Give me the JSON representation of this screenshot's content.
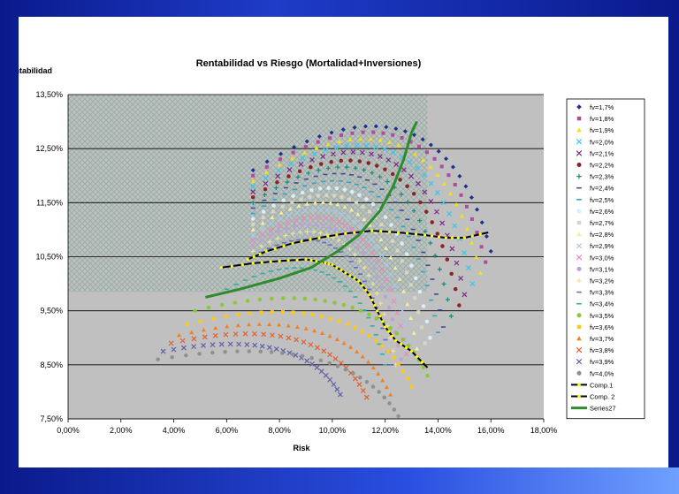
{
  "colors": {
    "plot_bg": "#c0c0c0",
    "hatch": "#a9bdb5",
    "comp_line": "#000000",
    "comp_marker": "#ffff00",
    "frontier": "#2e8b2e"
  },
  "chart_data": {
    "type": "scatter",
    "title": "Rentabilidad vs Riesgo (Mortalidad+Inversiones)",
    "xlabel": "Risk",
    "ylabel": "Rentabilidad",
    "xlim": [
      0,
      18
    ],
    "ylim": [
      7.5,
      13.5
    ],
    "x_ticks": [
      "0,00%",
      "2,00%",
      "4,00%",
      "6,00%",
      "8,00%",
      "10,00%",
      "12,00%",
      "14,00%",
      "16,00%",
      "18,00%"
    ],
    "y_ticks": [
      "7,50%",
      "8,50%",
      "9,50%",
      "10,50%",
      "11,50%",
      "12,50%",
      "13,50%"
    ],
    "grid": true,
    "legend_position": "right",
    "series": [
      {
        "name": "fv=1,7%",
        "color": "#1f2f8f",
        "marker": "diamond",
        "start": [
          7.0,
          12.1
        ],
        "end": [
          16.0,
          10.6
        ],
        "peak": 12.98
      },
      {
        "name": "fv=1,8%",
        "color": "#b04c9a",
        "marker": "square",
        "start": [
          7.0,
          12.0
        ],
        "end": [
          15.8,
          10.4
        ],
        "peak": 12.85
      },
      {
        "name": "fv=1,9%",
        "color": "#f2e21a",
        "marker": "triangle",
        "start": [
          7.0,
          11.9
        ],
        "end": [
          15.6,
          10.2
        ],
        "peak": 12.7
      },
      {
        "name": "fv=2,0%",
        "color": "#38c8e8",
        "marker": "x",
        "start": [
          7.0,
          11.8
        ],
        "end": [
          15.3,
          10.0
        ],
        "peak": 12.55
      },
      {
        "name": "fv=2,1%",
        "color": "#7a2b8a",
        "marker": "x",
        "start": [
          7.0,
          11.7
        ],
        "end": [
          15.0,
          9.8
        ],
        "peak": 12.4
      },
      {
        "name": "fv=2,2%",
        "color": "#8a2424",
        "marker": "circle",
        "start": [
          7.0,
          11.6
        ],
        "end": [
          14.8,
          9.6
        ],
        "peak": 12.2
      },
      {
        "name": "fv=2,3%",
        "color": "#1b8a7a",
        "marker": "plus",
        "start": [
          7.0,
          11.5
        ],
        "end": [
          14.5,
          9.4
        ],
        "peak": 12.05
      },
      {
        "name": "fv=2,4%",
        "color": "#3a4aa0",
        "marker": "dash",
        "start": [
          7.0,
          11.4
        ],
        "end": [
          14.2,
          9.2
        ],
        "peak": 11.9
      },
      {
        "name": "fv=2,5%",
        "color": "#2aa8c8",
        "marker": "dash",
        "start": [
          7.0,
          11.3
        ],
        "end": [
          14.0,
          9.1
        ],
        "peak": 11.75
      },
      {
        "name": "fv=2,6%",
        "color": "#d8eef8",
        "marker": "circle",
        "start": [
          7.0,
          11.2
        ],
        "end": [
          13.7,
          9.0
        ],
        "peak": 11.6
      },
      {
        "name": "fv=2,7%",
        "color": "#d8d8c0",
        "marker": "square",
        "start": [
          7.0,
          11.1
        ],
        "end": [
          13.5,
          8.9
        ],
        "peak": 11.45
      },
      {
        "name": "fv=2,8%",
        "color": "#f0f0a0",
        "marker": "triangle",
        "start": [
          7.0,
          11.0
        ],
        "end": [
          13.2,
          8.8
        ],
        "peak": 11.3
      },
      {
        "name": "fv=2,9%",
        "color": "#a8c8e8",
        "marker": "x",
        "start": [
          7.0,
          10.9
        ],
        "end": [
          13.0,
          8.7
        ],
        "peak": 11.15
      },
      {
        "name": "fv=3,0%",
        "color": "#e88ac8",
        "marker": "x",
        "start": [
          7.0,
          10.8
        ],
        "end": [
          12.8,
          8.7
        ],
        "peak": 11.0
      },
      {
        "name": "fv=3,1%",
        "color": "#c0a0d8",
        "marker": "circle",
        "start": [
          7.0,
          10.7
        ],
        "end": [
          12.6,
          8.6
        ],
        "peak": 10.85
      },
      {
        "name": "fv=3,2%",
        "color": "#f0e0a0",
        "marker": "plus",
        "start": [
          7.0,
          10.6
        ],
        "end": [
          12.4,
          8.5
        ],
        "peak": 10.7
      },
      {
        "name": "fv=3,3%",
        "color": "#6a6ac8",
        "marker": "dash",
        "start": [
          7.0,
          10.5
        ],
        "end": [
          12.2,
          8.5
        ],
        "peak": 10.55
      },
      {
        "name": "fv=3,4%",
        "color": "#30b0a0",
        "marker": "dash",
        "start": [
          6.0,
          9.9
        ],
        "end": [
          12.0,
          8.5
        ],
        "peak": 10.2
      },
      {
        "name": "fv=3,5%",
        "color": "#8ac838",
        "marker": "circle",
        "start": [
          4.8,
          9.5
        ],
        "end": [
          13.6,
          8.3
        ],
        "peak": 9.6
      },
      {
        "name": "fv=3,6%",
        "color": "#f8c820",
        "marker": "square",
        "start": [
          4.5,
          9.25
        ],
        "end": [
          13.0,
          8.1
        ],
        "peak": 9.35
      },
      {
        "name": "fv=3,7%",
        "color": "#f08020",
        "marker": "triangle",
        "start": [
          4.2,
          9.05
        ],
        "end": [
          12.2,
          7.95
        ],
        "peak": 9.12
      },
      {
        "name": "fv=3,8%",
        "color": "#e06030",
        "marker": "x",
        "start": [
          3.9,
          8.9
        ],
        "end": [
          11.3,
          7.9
        ],
        "peak": 8.95
      },
      {
        "name": "fv=3,9%",
        "color": "#6060a8",
        "marker": "x",
        "start": [
          3.6,
          8.75
        ],
        "end": [
          10.3,
          7.95
        ],
        "peak": 8.78
      },
      {
        "name": "fv=4,0%",
        "color": "#909090",
        "marker": "circle",
        "start": [
          3.4,
          8.6
        ],
        "end": [
          12.5,
          7.55
        ],
        "peak": 8.6
      }
    ],
    "lines": [
      {
        "name": "Comp.1",
        "color": "#000000",
        "marker_color": "#ffff00",
        "points": [
          [
            6.8,
            10.45
          ],
          [
            7.5,
            10.6
          ],
          [
            8.5,
            10.75
          ],
          [
            9.5,
            10.85
          ],
          [
            10.5,
            10.93
          ],
          [
            11.5,
            10.98
          ],
          [
            12.5,
            10.95
          ],
          [
            13.5,
            10.9
          ],
          [
            14.3,
            10.85
          ],
          [
            15.0,
            10.85
          ],
          [
            15.9,
            10.95
          ]
        ]
      },
      {
        "name": "Comp. 2",
        "color": "#000000",
        "marker_color": "#ffff00",
        "points": [
          [
            5.8,
            10.3
          ],
          [
            7.0,
            10.38
          ],
          [
            8.0,
            10.42
          ],
          [
            9.0,
            10.45
          ],
          [
            9.6,
            10.4
          ],
          [
            10.0,
            10.35
          ],
          [
            10.5,
            10.2
          ],
          [
            11.0,
            10.05
          ],
          [
            11.4,
            9.8
          ],
          [
            11.7,
            9.5
          ],
          [
            12.0,
            9.2
          ],
          [
            12.4,
            8.95
          ],
          [
            13.0,
            8.75
          ],
          [
            13.6,
            8.45
          ]
        ]
      },
      {
        "name": "Series27",
        "color": "#2e8b2e",
        "points": [
          [
            5.2,
            9.75
          ],
          [
            6.5,
            9.9
          ],
          [
            8.0,
            10.1
          ],
          [
            9.2,
            10.3
          ],
          [
            10.2,
            10.6
          ],
          [
            11.0,
            10.9
          ],
          [
            11.8,
            11.35
          ],
          [
            12.3,
            11.8
          ],
          [
            12.7,
            12.3
          ],
          [
            13.0,
            12.8
          ],
          [
            13.2,
            13.0
          ]
        ]
      }
    ]
  }
}
